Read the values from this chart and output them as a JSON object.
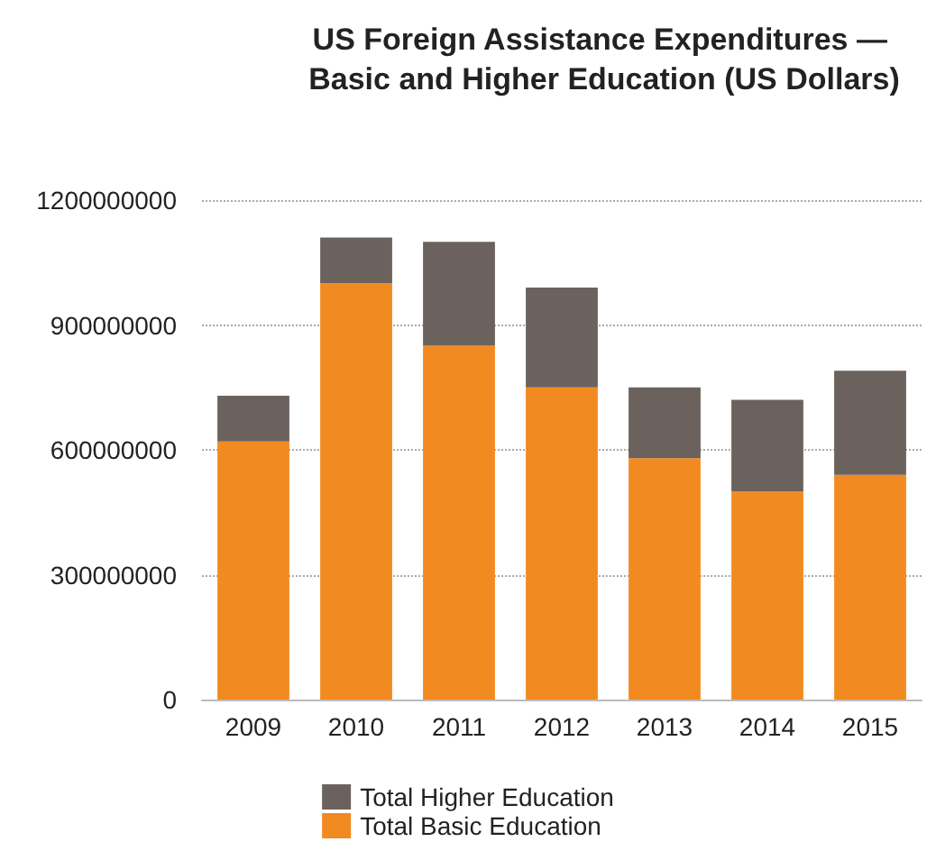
{
  "chart_data": {
    "type": "bar",
    "title": "US Foreign Assistance Expenditures — Basic and Higher Education (US Dollars)",
    "categories": [
      "2009",
      "2010",
      "2011",
      "2012",
      "2013",
      "2014",
      "2015"
    ],
    "stacked": true,
    "series": [
      {
        "name": "Total Basic Education",
        "color": "#f28a22",
        "values": [
          620000000,
          1000000000,
          850000000,
          750000000,
          580000000,
          500000000,
          540000000
        ]
      },
      {
        "name": "Total Higher Education",
        "color": "#6b625e",
        "values": [
          110000000,
          110000000,
          250000000,
          240000000,
          170000000,
          220000000,
          250000000
        ]
      }
    ],
    "ylim": [
      0,
      1200000000
    ],
    "yticks": [
      0,
      300000000,
      600000000,
      900000000,
      1200000000
    ],
    "grid": "y",
    "legend": "bottom"
  }
}
